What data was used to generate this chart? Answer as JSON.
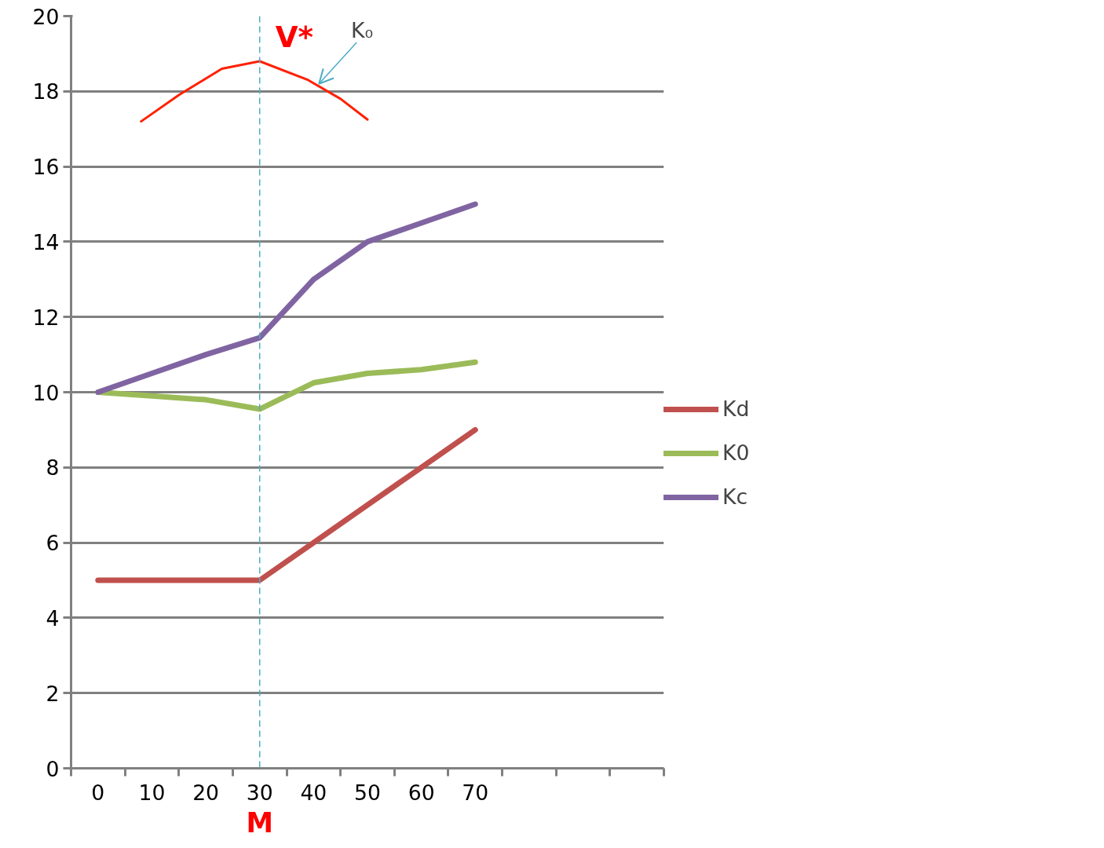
{
  "chart_data": {
    "type": "line",
    "x": [
      0,
      10,
      20,
      30,
      40,
      50,
      60,
      70
    ],
    "series": [
      {
        "name": "Kd",
        "color": "#c0504d",
        "values": [
          5,
          5,
          5,
          5,
          6,
          7,
          8,
          9
        ]
      },
      {
        "name": "K0",
        "color": "#9bbb59",
        "values": [
          10,
          9.9,
          9.8,
          9.55,
          10.25,
          10.5,
          10.6,
          10.8
        ]
      },
      {
        "name": "Kc",
        "color": "#8064a2",
        "values": [
          10,
          10.5,
          11,
          11.45,
          13,
          14,
          14.5,
          15
        ]
      },
      {
        "color": "#ff2000",
        "x": [
          8,
          15,
          23,
          30,
          39,
          45,
          50
        ],
        "values": [
          17.2,
          17.9,
          18.6,
          18.8,
          18.3,
          17.8,
          17.25
        ]
      }
    ],
    "xlim": [
      -5,
      105
    ],
    "xticks": [
      0,
      10,
      20,
      30,
      40,
      50,
      60,
      70,
      {
        "value": -5,
        "label": null
      },
      {
        "value": 5,
        "label": null
      },
      {
        "value": 15,
        "label": null
      },
      {
        "value": 25,
        "label": null
      },
      {
        "value": 35,
        "label": null
      },
      {
        "value": 45,
        "label": null
      },
      {
        "value": 55,
        "label": null
      },
      {
        "value": 65,
        "label": null
      },
      {
        "value": 75,
        "label": null
      },
      {
        "value": 85,
        "label": null
      },
      {
        "value": 95,
        "label": null
      },
      {
        "value": 105,
        "label": null
      }
    ],
    "ylim": [
      0,
      20
    ],
    "yticks": [
      0,
      2,
      4,
      6,
      8,
      10,
      12,
      14,
      16,
      18,
      20
    ],
    "grid": "y",
    "legend": "right",
    "ref_lines": [
      {
        "axis": "x",
        "value": 30,
        "label": "M",
        "color": "#4bacc6",
        "line_style": "dashed"
      }
    ],
    "annotations": [
      "V*",
      {
        "text": "K₀",
        "x": 41,
        "y": 18.2
      }
    ]
  }
}
